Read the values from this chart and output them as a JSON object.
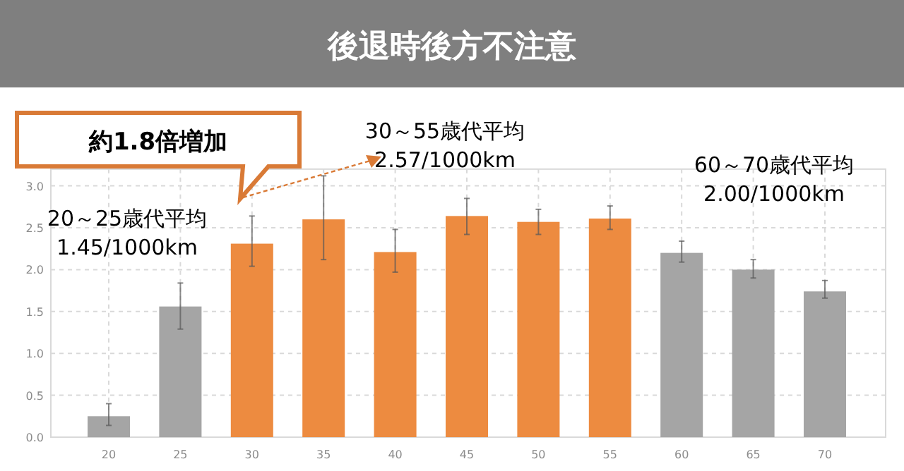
{
  "chart_data": {
    "type": "bar",
    "title": "後退時後方不注意",
    "categories": [
      "20",
      "25",
      "30",
      "35",
      "40",
      "45",
      "50",
      "55",
      "60",
      "65",
      "70"
    ],
    "values": [
      0.25,
      1.56,
      2.31,
      2.6,
      2.21,
      2.64,
      2.57,
      2.61,
      2.2,
      2.0,
      1.74
    ],
    "colors": [
      "#a5a5a5",
      "#a5a5a5",
      "#ed8b40",
      "#ed8b40",
      "#ed8b40",
      "#ed8b40",
      "#ed8b40",
      "#ed8b40",
      "#a5a5a5",
      "#a5a5a5",
      "#a5a5a5"
    ],
    "errors": [
      [
        0.14,
        0.4
      ],
      [
        1.29,
        1.84
      ],
      [
        2.04,
        2.64
      ],
      [
        2.12,
        3.12
      ],
      [
        1.97,
        2.48
      ],
      [
        2.42,
        2.85
      ],
      [
        2.42,
        2.72
      ],
      [
        2.48,
        2.76
      ],
      [
        2.09,
        2.34
      ],
      [
        1.9,
        2.12
      ],
      [
        1.66,
        1.87
      ]
    ],
    "ylim": [
      0,
      3.2
    ],
    "yticks": [
      {
        "value": 0,
        "label": "0.0"
      },
      0.5,
      {
        "value": 1,
        "label": "1.0"
      },
      1.5,
      {
        "value": 2,
        "label": "2.0"
      },
      2.5,
      {
        "value": 3,
        "label": "3.0"
      }
    ],
    "grid": true,
    "annotations": [
      "約1.8倍増加",
      "30～55歳代平均\n2.57/1000km",
      "20～25歳代平均\n1.45/1000km",
      "60～70歳代平均\n2.00/1000km"
    ]
  }
}
